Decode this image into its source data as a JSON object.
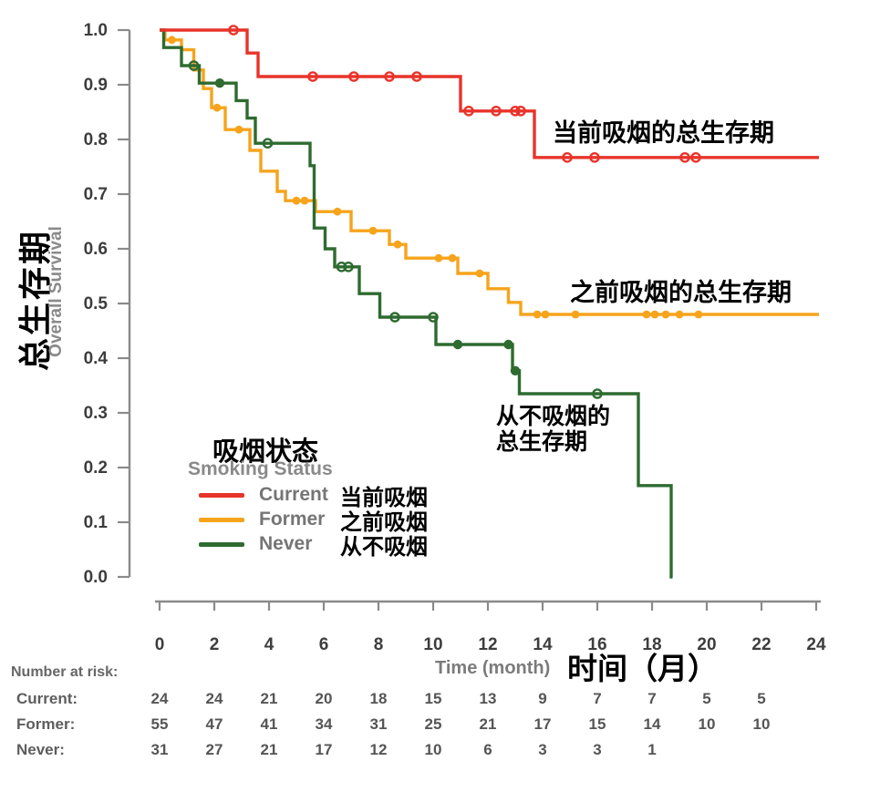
{
  "chart_data": {
    "type": "line",
    "variant": "kaplan_meier_step",
    "title": "",
    "xlabel_en": "Time (month)",
    "xlabel_zh": "时间（月）",
    "ylabel_zh": "总生存期",
    "ylabel_en": "Overall Survival",
    "xlim": [
      0,
      24
    ],
    "ylim": [
      0.0,
      1.0
    ],
    "xticks": [
      0,
      2,
      4,
      6,
      8,
      10,
      12,
      14,
      16,
      18,
      20,
      22,
      24
    ],
    "yticks": [
      "1.0",
      "0.9",
      "0.8",
      "0.7",
      "0.6",
      "0.5",
      "0.4",
      "0.3",
      "0.2",
      "0.1",
      "0.0"
    ],
    "grid": false,
    "legend_position": "lower-left-inside",
    "axis_color": "#8a8a8a",
    "tick_label_color": "#3d3d3d",
    "series": [
      {
        "name": "Current",
        "label_zh": "当前吸烟",
        "annotation": "当前吸烟的总生存期",
        "color": "#e8332a",
        "censor_style": "open",
        "end": 24.1,
        "steps": [
          [
            0,
            1.0
          ],
          [
            3.2,
            0.958
          ],
          [
            3.6,
            0.915
          ],
          [
            11.0,
            0.852
          ],
          [
            13.7,
            0.767
          ]
        ],
        "censors": [
          [
            2.7,
            1.0
          ],
          [
            5.6,
            0.915
          ],
          [
            7.1,
            0.915
          ],
          [
            8.4,
            0.915
          ],
          [
            9.4,
            0.915
          ],
          [
            11.3,
            0.852
          ],
          [
            12.3,
            0.852
          ],
          [
            13.0,
            0.852
          ],
          [
            13.2,
            0.852
          ],
          [
            14.9,
            0.767
          ],
          [
            15.9,
            0.767
          ],
          [
            19.2,
            0.767
          ],
          [
            19.6,
            0.767
          ]
        ],
        "filled_censors": []
      },
      {
        "name": "Former",
        "label_zh": "之前吸烟",
        "annotation": "之前吸烟的总生存期",
        "color": "#f6a41c",
        "censor_style": "filled",
        "end": 24.1,
        "steps": [
          [
            0,
            1.0
          ],
          [
            0.2,
            0.982
          ],
          [
            0.8,
            0.964
          ],
          [
            1.25,
            0.927
          ],
          [
            1.6,
            0.893
          ],
          [
            1.9,
            0.858
          ],
          [
            2.4,
            0.818
          ],
          [
            3.3,
            0.78
          ],
          [
            3.7,
            0.742
          ],
          [
            4.3,
            0.705
          ],
          [
            4.6,
            0.688
          ],
          [
            5.7,
            0.668
          ],
          [
            7.0,
            0.633
          ],
          [
            8.4,
            0.608
          ],
          [
            9.0,
            0.583
          ],
          [
            10.9,
            0.555
          ],
          [
            12.0,
            0.527
          ],
          [
            12.75,
            0.502
          ],
          [
            13.2,
            0.48
          ]
        ],
        "censors": [
          [
            0.45,
            0.982
          ],
          [
            2.1,
            0.858
          ],
          [
            2.9,
            0.818
          ],
          [
            5.0,
            0.688
          ],
          [
            5.3,
            0.688
          ],
          [
            6.5,
            0.668
          ],
          [
            7.8,
            0.633
          ],
          [
            8.7,
            0.608
          ],
          [
            10.2,
            0.583
          ],
          [
            10.7,
            0.583
          ],
          [
            11.7,
            0.555
          ],
          [
            13.8,
            0.48
          ],
          [
            14.1,
            0.48
          ],
          [
            15.2,
            0.48
          ],
          [
            17.8,
            0.48
          ],
          [
            18.1,
            0.48
          ],
          [
            18.5,
            0.48
          ],
          [
            19.0,
            0.48
          ],
          [
            19.7,
            0.48
          ]
        ],
        "filled_censors": []
      },
      {
        "name": "Never",
        "label_zh": "从不吸烟",
        "annotation": "从不吸烟的\n总生存期",
        "color": "#2e6b30",
        "censor_style": "open",
        "end": 18.75,
        "steps": [
          [
            0,
            1.0
          ],
          [
            0.15,
            0.968
          ],
          [
            0.8,
            0.935
          ],
          [
            1.45,
            0.903
          ],
          [
            2.8,
            0.871
          ],
          [
            3.2,
            0.839
          ],
          [
            3.5,
            0.793
          ],
          [
            5.5,
            0.752
          ],
          [
            5.65,
            0.638
          ],
          [
            6.05,
            0.6
          ],
          [
            6.4,
            0.567
          ],
          [
            7.3,
            0.518
          ],
          [
            8.05,
            0.475
          ],
          [
            10.1,
            0.425
          ],
          [
            12.9,
            0.377
          ],
          [
            13.15,
            0.335
          ],
          [
            17.5,
            0.167
          ],
          [
            18.7,
            0.0
          ]
        ],
        "censors": [
          [
            1.25,
            0.935
          ],
          [
            3.95,
            0.793
          ],
          [
            6.65,
            0.567
          ],
          [
            6.9,
            0.567
          ],
          [
            8.6,
            0.475
          ],
          [
            10.0,
            0.475
          ],
          [
            16.0,
            0.335
          ]
        ],
        "filled_censors": [
          [
            2.2,
            0.903
          ],
          [
            10.9,
            0.425
          ],
          [
            12.75,
            0.425
          ],
          [
            13.0,
            0.377
          ]
        ]
      }
    ]
  },
  "legend": {
    "title_zh": "吸烟状态",
    "title_en": "Smoking Status"
  },
  "risk_table": {
    "title": "Number at risk:",
    "rows": [
      {
        "label": "Current:",
        "values": [
          "24",
          "24",
          "21",
          "20",
          "18",
          "15",
          "13",
          "9",
          "7",
          "7",
          "5",
          "5"
        ]
      },
      {
        "label": "Former:",
        "values": [
          "55",
          "47",
          "41",
          "34",
          "31",
          "25",
          "21",
          "17",
          "15",
          "14",
          "10",
          "10"
        ]
      },
      {
        "label": "Never:",
        "values": [
          "31",
          "27",
          "21",
          "17",
          "12",
          "10",
          "6",
          "3",
          "3",
          "1"
        ]
      }
    ]
  }
}
